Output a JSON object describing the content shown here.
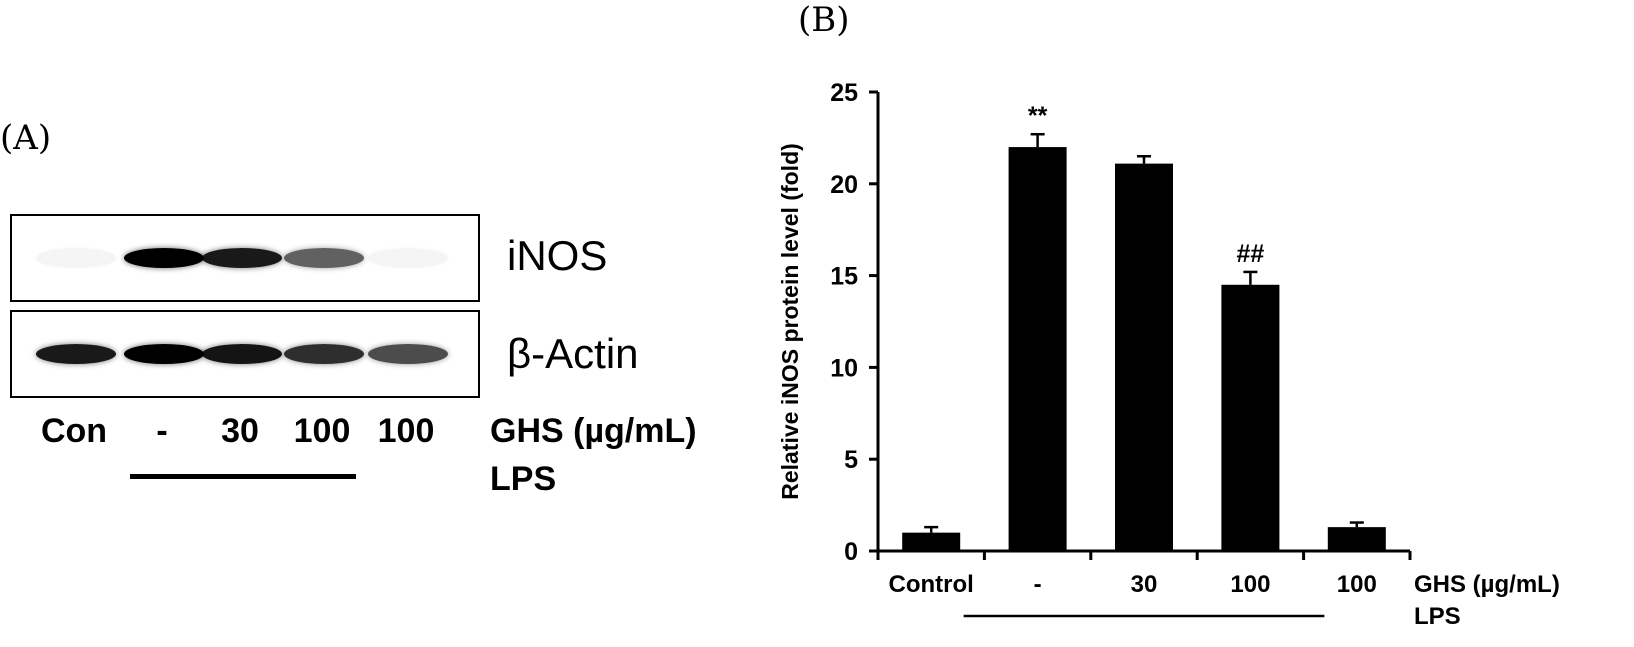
{
  "panel_a": {
    "label": "(A)",
    "blots": [
      {
        "name": "iNOS",
        "intensities": [
          0.04,
          1.0,
          0.9,
          0.62,
          0.03
        ]
      },
      {
        "name": "β-Actin",
        "intensities": [
          0.9,
          1.0,
          0.92,
          0.82,
          0.7
        ]
      }
    ],
    "lanes": [
      "Con",
      "-",
      "30",
      "100",
      "100"
    ],
    "treatment_label": "GHS (µg/mL)",
    "lps_label": "LPS"
  },
  "panel_b": {
    "label": "(B)"
  },
  "chart_data": {
    "type": "bar",
    "title": "",
    "ylabel": "Relative iNOS protein level (fold)",
    "xlabel": "",
    "categories": [
      "Control",
      "-",
      "30",
      "100",
      "100"
    ],
    "values": [
      1.0,
      22.0,
      21.1,
      14.5,
      1.3
    ],
    "errors": [
      0.3,
      0.7,
      0.4,
      0.7,
      0.25
    ],
    "annotations": [
      "",
      "**",
      "",
      "##",
      ""
    ],
    "ylim": [
      0,
      25
    ],
    "yticks": [
      0,
      5,
      10,
      15,
      20,
      25
    ],
    "treatment_label": "GHS (µg/mL)",
    "lps_label": "LPS",
    "lps_range": [
      1,
      3
    ],
    "bar_color": "#000000",
    "grid": false,
    "legend": "none"
  }
}
